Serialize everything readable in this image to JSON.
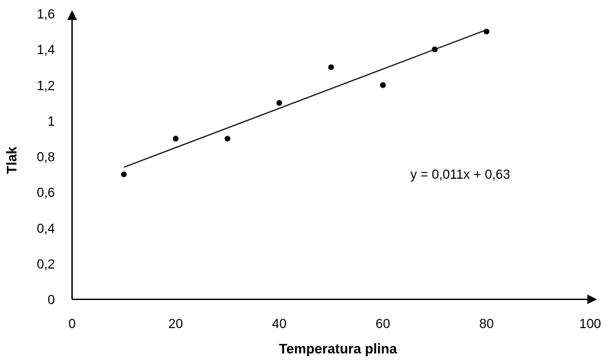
{
  "chart_data": {
    "type": "scatter",
    "title": "",
    "xlabel": "Temperatura plina",
    "ylabel": "Tlak",
    "xlim": [
      0,
      100
    ],
    "ylim": [
      0,
      1.6
    ],
    "x_ticks": [
      "0",
      "20",
      "40",
      "60",
      "80",
      "100"
    ],
    "y_ticks": [
      "0",
      "0,2",
      "0,4",
      "0,6",
      "0,8",
      "1",
      "1,2",
      "1,4",
      "1,6"
    ],
    "grid": false,
    "legend": "none",
    "series": [
      {
        "x": [
          10,
          20,
          30,
          40,
          50,
          60,
          70,
          80
        ],
        "y": [
          0.7,
          0.9,
          0.9,
          1.1,
          1.3,
          1.2,
          1.4,
          1.5
        ]
      }
    ],
    "trendline": {
      "type": "linear",
      "slope": 0.011,
      "intercept": 0.63,
      "x_range": [
        10,
        80
      ],
      "equation_label": "y = 0,011x + 0,63"
    },
    "colors": {
      "marker": "#000000",
      "line": "#000000",
      "axis": "#000000"
    }
  }
}
